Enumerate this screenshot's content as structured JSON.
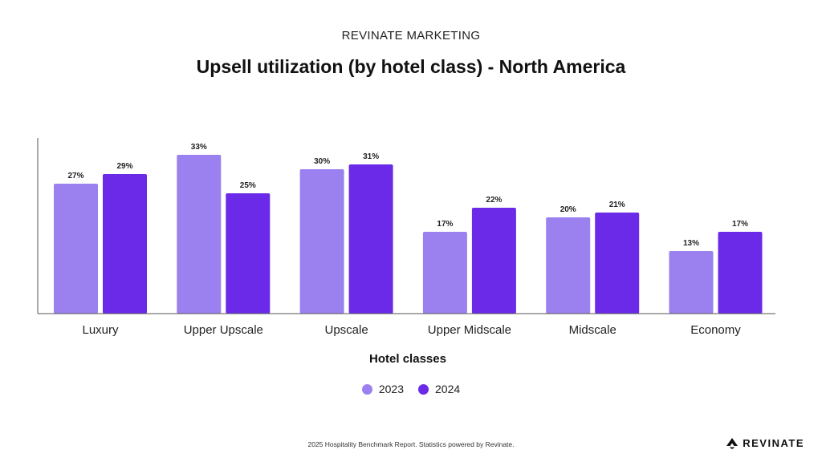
{
  "header": {
    "kicker": "REVINATE MARKETING",
    "title": "Upsell utilization (by hotel class) - North America"
  },
  "chart_data": {
    "type": "bar",
    "title": "Upsell utilization (by hotel class) - North America",
    "xlabel": "Hotel classes",
    "ylabel": "",
    "categories": [
      "Luxury",
      "Upper Upscale",
      "Upscale",
      "Upper Midscale",
      "Midscale",
      "Economy"
    ],
    "series": [
      {
        "name": "2023",
        "values": [
          27,
          33,
          30,
          17,
          20,
          13
        ],
        "labels": [
          "27%",
          "33%",
          "30%",
          "17%",
          "20%",
          "13%"
        ],
        "color": "#9b80ef"
      },
      {
        "name": "2024",
        "values": [
          29,
          25,
          31,
          22,
          21,
          17
        ],
        "labels": [
          "29%",
          "25%",
          "31%",
          "22%",
          "21%",
          "17%"
        ],
        "color": "#6a2ae8"
      }
    ],
    "ylim": [
      0,
      40
    ],
    "grid": false,
    "legend": "bottom-center"
  },
  "footer": {
    "note": "2025 Hospitality Benchmark Report. Statistics powered by Revinate.",
    "brand": "REVINATE",
    "brand_icon": "revinate-logo-icon"
  }
}
